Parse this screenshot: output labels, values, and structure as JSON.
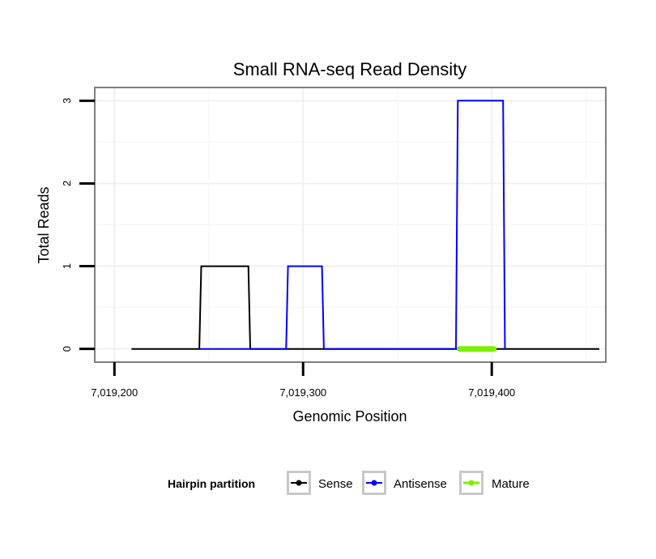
{
  "chart_data": {
    "type": "line",
    "title": "Small RNA-seq Read Density",
    "xlabel": "Genomic Position",
    "ylabel": "Total Reads",
    "xlim": [
      7019190,
      7019460
    ],
    "ylim": [
      -0.15,
      3.15
    ],
    "x_ticks": [
      7019200,
      7019300,
      7019400
    ],
    "x_tick_labels": [
      "7,019,200",
      "7,019,300",
      "7,019,400"
    ],
    "y_ticks": [
      0,
      1,
      2,
      3
    ],
    "y_tick_labels": [
      "0",
      "1",
      "2",
      "3"
    ],
    "grid": true,
    "legend_position": "bottom",
    "legend_title": "Hairpin partition",
    "series": [
      {
        "name": "Sense",
        "color": "#000000",
        "points": [
          [
            7019209,
            0
          ],
          [
            7019245,
            0
          ],
          [
            7019246,
            1
          ],
          [
            7019271,
            1
          ],
          [
            7019272,
            0
          ],
          [
            7019457,
            0
          ]
        ]
      },
      {
        "name": "Antisense",
        "color": "#0000ff",
        "points": [
          [
            7019245,
            0
          ],
          [
            7019272,
            0
          ],
          [
            7019291,
            0
          ],
          [
            7019292,
            1
          ],
          [
            7019310,
            1
          ],
          [
            7019311,
            0
          ],
          [
            7019381,
            0
          ],
          [
            7019382,
            3
          ],
          [
            7019406,
            3
          ],
          [
            7019407,
            0
          ]
        ]
      },
      {
        "name": "Mature",
        "color": "#7cf000",
        "points": [
          [
            7019383,
            0
          ],
          [
            7019401,
            0
          ]
        ]
      }
    ]
  }
}
